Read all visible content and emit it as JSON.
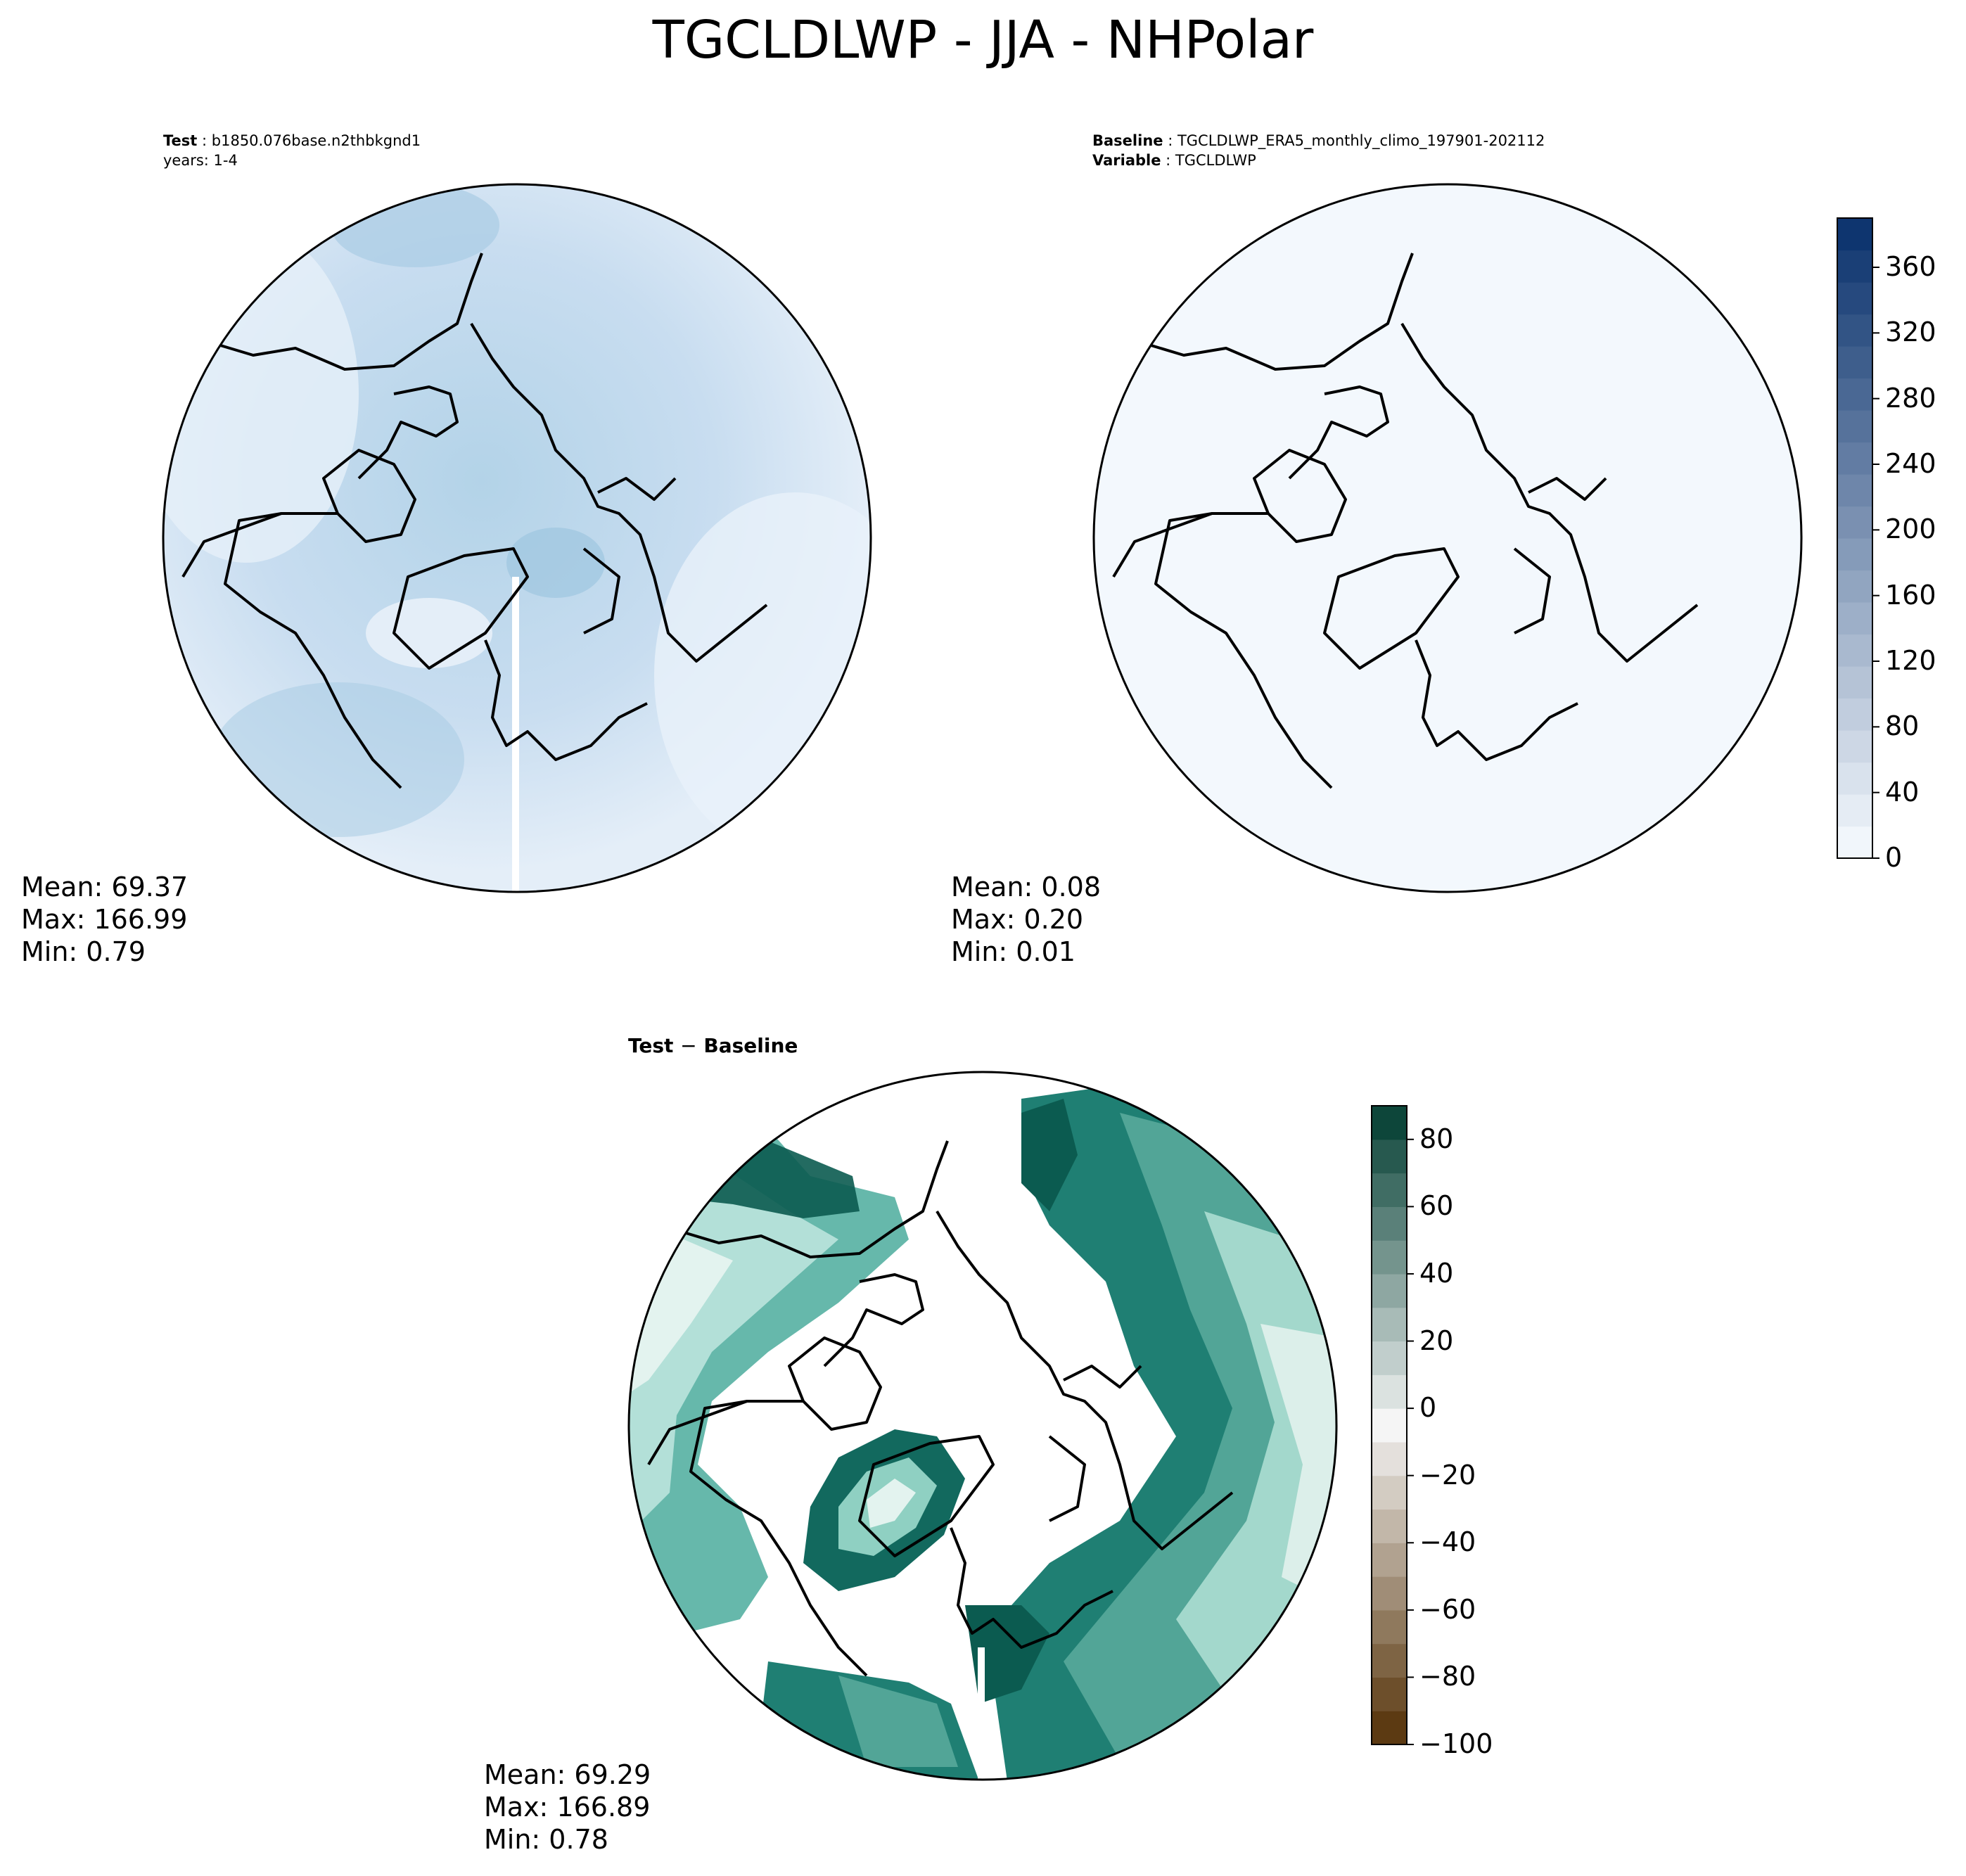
{
  "figure": {
    "title": "TGCLDLWP - JJA - NHPolar"
  },
  "panels": {
    "test": {
      "label_bold": "Test",
      "label_text": "b1850.076base.n2thbkgnd1",
      "line2": "years: 1-4",
      "mean": "Mean: 69.37",
      "max": "Max: 166.99",
      "min": "Min:  0.79"
    },
    "baseline": {
      "label_bold": "Baseline",
      "label_text": "TGCLDLWP_ERA5_monthly_climo_197901-202112",
      "line2_bold": "Variable",
      "line2_text": "TGCLDLWP",
      "mean": "Mean:  0.08",
      "max": "Max:  0.20",
      "min": "Min:  0.01"
    },
    "diff": {
      "title_bold": "Test",
      "title_op": "−",
      "title_bold2": "Baseline",
      "mean": "Mean: 69.29",
      "max": "Max: 166.89",
      "min": "Min:  0.78"
    }
  },
  "colorbars": {
    "main": {
      "colormap": "Blues",
      "range": [
        0,
        390
      ],
      "ticks": [
        "0",
        "40",
        "80",
        "120",
        "160",
        "200",
        "240",
        "280",
        "320",
        "360"
      ],
      "colors": [
        "#f7fbff",
        "#08306b"
      ]
    },
    "diff": {
      "colormap": "BrBG",
      "range": [
        -100,
        90
      ],
      "ticks": [
        "−100",
        "−80",
        "−60",
        "−40",
        "−20",
        "0",
        "20",
        "40",
        "60",
        "80"
      ],
      "colors": [
        "#543005",
        "#f5f5f5",
        "#003c30"
      ]
    }
  }
}
